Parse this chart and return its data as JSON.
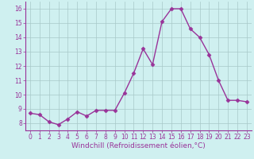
{
  "x": [
    0,
    1,
    2,
    3,
    4,
    5,
    6,
    7,
    8,
    9,
    10,
    11,
    12,
    13,
    14,
    15,
    16,
    17,
    18,
    19,
    20,
    21,
    22,
    23
  ],
  "y": [
    8.7,
    8.6,
    8.1,
    7.9,
    8.3,
    8.8,
    8.5,
    8.9,
    8.9,
    8.9,
    10.1,
    11.5,
    13.2,
    12.1,
    15.1,
    16.0,
    16.0,
    14.6,
    14.0,
    12.8,
    11.0,
    9.6,
    9.6,
    9.5
  ],
  "line_color": "#993399",
  "marker": "D",
  "marker_size": 2.5,
  "bg_color": "#cff0f0",
  "grid_color": "#a8c8c8",
  "xlabel": "Windchill (Refroidissement éolien,°C)",
  "xlim": [
    -0.5,
    23.5
  ],
  "ylim": [
    7.5,
    16.5
  ],
  "yticks": [
    8,
    9,
    10,
    11,
    12,
    13,
    14,
    15,
    16
  ],
  "xticks": [
    0,
    1,
    2,
    3,
    4,
    5,
    6,
    7,
    8,
    9,
    10,
    11,
    12,
    13,
    14,
    15,
    16,
    17,
    18,
    19,
    20,
    21,
    22,
    23
  ],
  "tick_fontsize": 5.5,
  "xlabel_fontsize": 6.5,
  "line_width": 1.0,
  "spine_color": "#993399",
  "tick_color": "#993399"
}
